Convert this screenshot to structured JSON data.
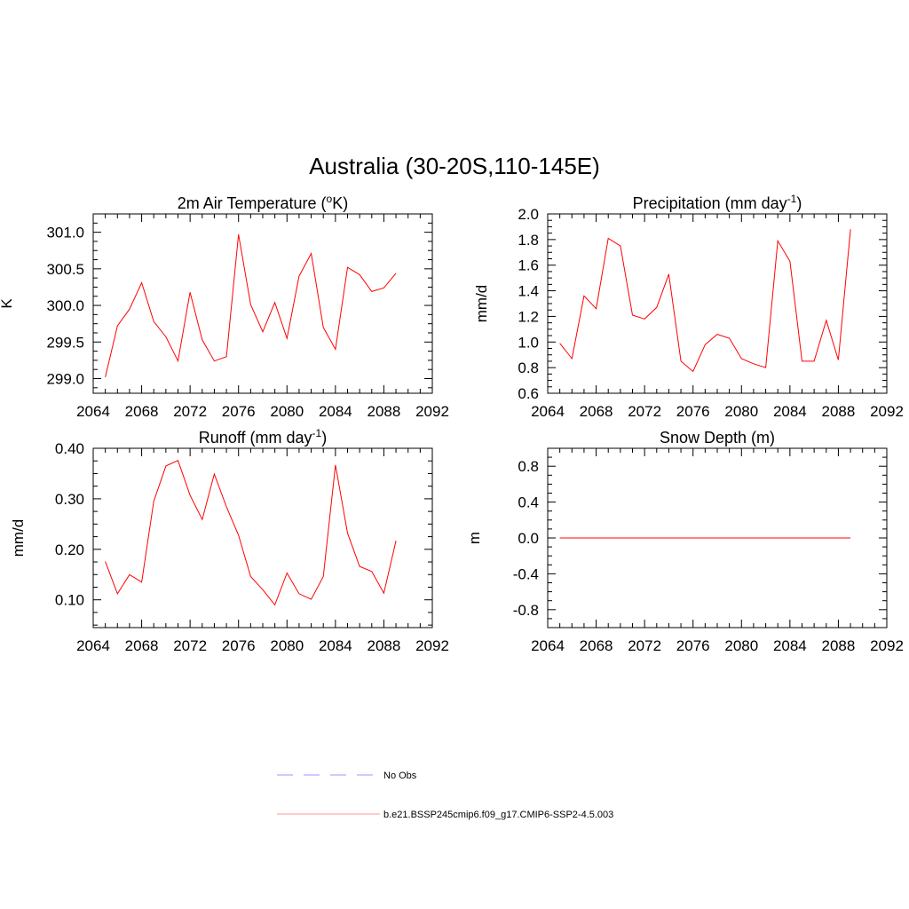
{
  "figure": {
    "title": "Australia (30-20S,110-145E)",
    "line_color": "#ff0000"
  },
  "legend": {
    "placement": "bottom-center",
    "entries": [
      {
        "label": "No Obs",
        "color": "#9999ff",
        "dash": "dashed"
      },
      {
        "label": "b.e21.BSSP245cmip6.f09_g17.CMIP6-SSP2-4.5.003",
        "color": "#ff9999",
        "dash": "solid"
      }
    ]
  },
  "chart_data": [
    {
      "type": "line",
      "title": "2m Air Temperature (",
      "title_sup": "o",
      "title_after": "K)",
      "ylabel": "K",
      "xlim": [
        2064,
        2092
      ],
      "ylim": [
        298.8,
        301.25
      ],
      "xticks": [
        2064,
        2068,
        2072,
        2076,
        2080,
        2084,
        2088,
        2092
      ],
      "yticks": [
        299.0,
        299.5,
        300.0,
        300.5,
        301.0
      ],
      "ytick_labels": [
        "299.0",
        "299.5",
        "300.0",
        "300.5",
        "301.0"
      ],
      "grid": false,
      "series": [
        {
          "x": [
            2065,
            2066,
            2067,
            2068,
            2069,
            2070,
            2071,
            2072,
            2073,
            2074,
            2075,
            2076,
            2077,
            2078,
            2079,
            2080,
            2081,
            2082,
            2083,
            2084,
            2085,
            2086,
            2087,
            2088,
            2089
          ],
          "y": [
            299.02,
            299.72,
            299.95,
            300.31,
            299.78,
            299.57,
            299.24,
            300.18,
            299.53,
            299.24,
            299.3,
            300.97,
            300.01,
            299.64,
            300.04,
            299.55,
            300.4,
            300.71,
            299.7,
            299.4,
            300.52,
            300.42,
            300.19,
            300.24,
            300.44
          ]
        }
      ]
    },
    {
      "type": "line",
      "title": "Precipitation (mm day",
      "title_sup": "-1",
      "title_after": ")",
      "ylabel": "mm/d",
      "xlim": [
        2064,
        2092
      ],
      "ylim": [
        0.6,
        2.0
      ],
      "xticks": [
        2064,
        2068,
        2072,
        2076,
        2080,
        2084,
        2088,
        2092
      ],
      "yticks": [
        0.6,
        0.8,
        1.0,
        1.2,
        1.4,
        1.6,
        1.8,
        2.0
      ],
      "ytick_labels": [
        "0.6",
        "0.8",
        "1.0",
        "1.2",
        "1.4",
        "1.6",
        "1.8",
        "2.0"
      ],
      "grid": false,
      "series": [
        {
          "x": [
            2065,
            2066,
            2067,
            2068,
            2069,
            2070,
            2071,
            2072,
            2073,
            2074,
            2075,
            2076,
            2077,
            2078,
            2079,
            2080,
            2081,
            2082,
            2083,
            2084,
            2085,
            2086,
            2087,
            2088,
            2089
          ],
          "y": [
            0.99,
            0.87,
            1.36,
            1.26,
            1.81,
            1.75,
            1.21,
            1.18,
            1.27,
            1.53,
            0.85,
            0.77,
            0.98,
            1.06,
            1.03,
            0.87,
            0.83,
            0.8,
            1.79,
            1.63,
            0.85,
            0.85,
            1.17,
            0.86,
            1.88
          ]
        }
      ]
    },
    {
      "type": "line",
      "title": "Runoff (mm day",
      "title_sup": "-1",
      "title_after": ")",
      "ylabel": "mm/d",
      "xlim": [
        2064,
        2092
      ],
      "ylim": [
        0.045,
        0.4
      ],
      "xticks": [
        2064,
        2068,
        2072,
        2076,
        2080,
        2084,
        2088,
        2092
      ],
      "yticks": [
        0.1,
        0.2,
        0.3,
        0.4
      ],
      "ytick_labels": [
        "0.10",
        "0.20",
        "0.30",
        "0.40"
      ],
      "grid": false,
      "series": [
        {
          "x": [
            2065,
            2066,
            2067,
            2068,
            2069,
            2070,
            2071,
            2072,
            2073,
            2074,
            2075,
            2076,
            2077,
            2078,
            2079,
            2080,
            2081,
            2082,
            2083,
            2084,
            2085,
            2086,
            2087,
            2088,
            2089
          ],
          "y": [
            0.176,
            0.112,
            0.15,
            0.135,
            0.295,
            0.365,
            0.376,
            0.307,
            0.259,
            0.349,
            0.284,
            0.228,
            0.146,
            0.12,
            0.09,
            0.153,
            0.112,
            0.101,
            0.146,
            0.367,
            0.232,
            0.166,
            0.156,
            0.113,
            0.217
          ]
        }
      ]
    },
    {
      "type": "line",
      "title": "Snow Depth (m)",
      "title_sup": "",
      "title_after": "",
      "ylabel": "m",
      "xlim": [
        2064,
        2092
      ],
      "ylim": [
        -1.0,
        1.0
      ],
      "xticks": [
        2064,
        2068,
        2072,
        2076,
        2080,
        2084,
        2088,
        2092
      ],
      "yticks": [
        -0.8,
        -0.4,
        0.0,
        0.4,
        0.8
      ],
      "ytick_labels": [
        "-0.8",
        "-0.4",
        "0.0",
        "0.4",
        "0.8"
      ],
      "grid": false,
      "series": [
        {
          "x": [
            2065,
            2066,
            2067,
            2068,
            2069,
            2070,
            2071,
            2072,
            2073,
            2074,
            2075,
            2076,
            2077,
            2078,
            2079,
            2080,
            2081,
            2082,
            2083,
            2084,
            2085,
            2086,
            2087,
            2088,
            2089
          ],
          "y": [
            0,
            0,
            0,
            0,
            0,
            0,
            0,
            0,
            0,
            0,
            0,
            0,
            0,
            0,
            0,
            0,
            0,
            0,
            0,
            0,
            0,
            0,
            0,
            0,
            0
          ]
        }
      ]
    }
  ]
}
